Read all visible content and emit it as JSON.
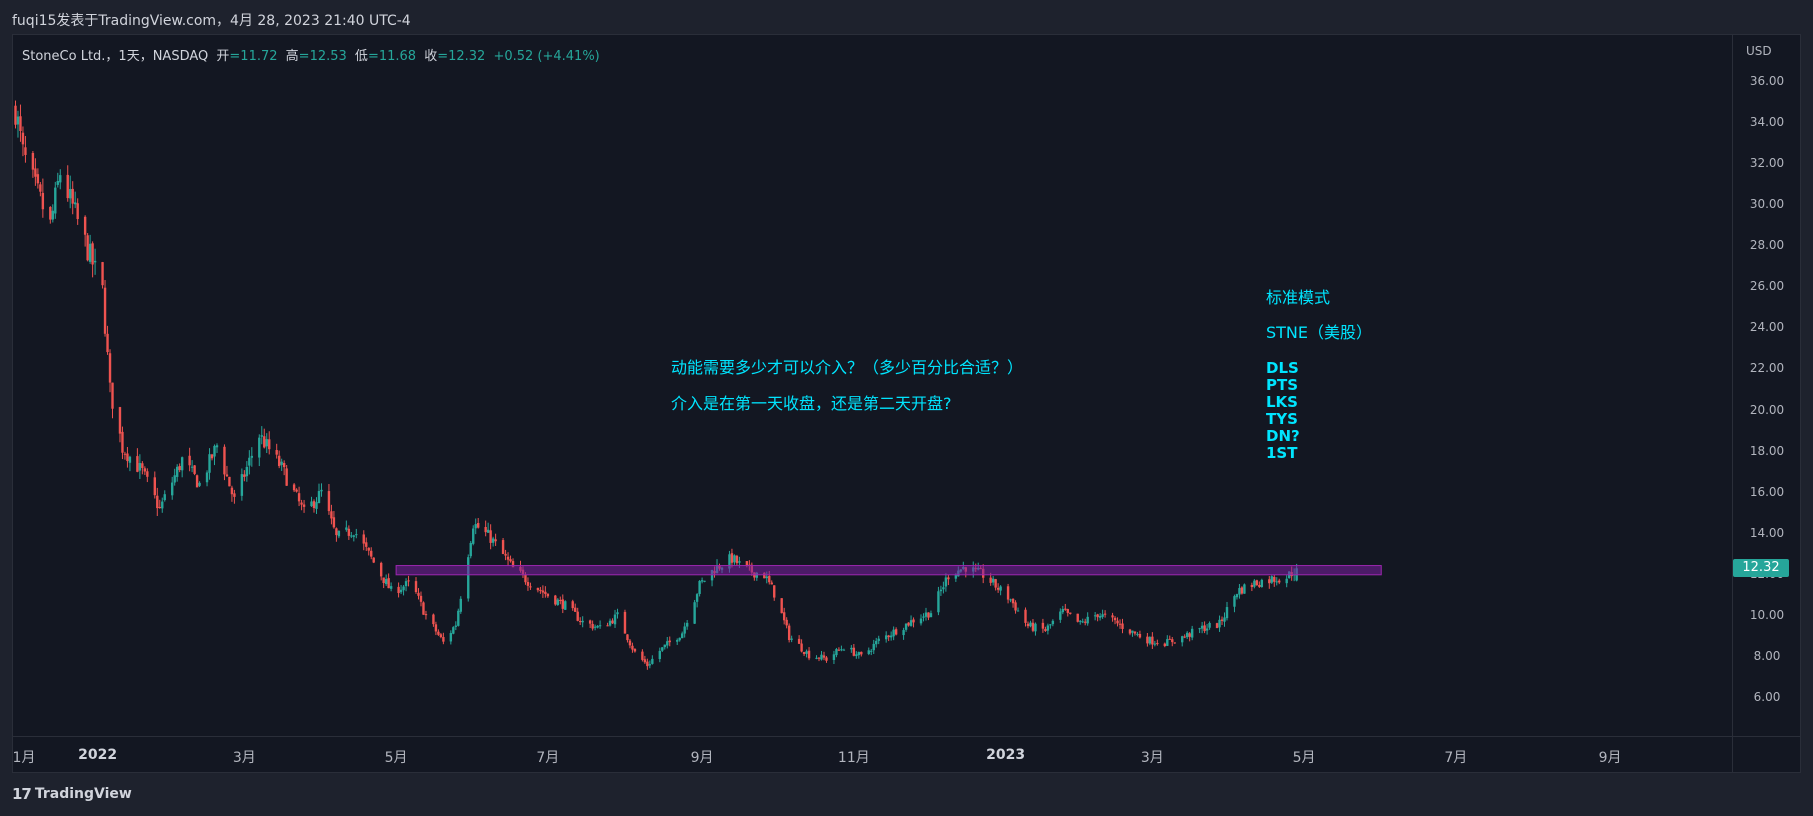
{
  "header": {
    "title": "fuqi15发表于TradingView.com，4月 28, 2023 21:40 UTC-4"
  },
  "legend": {
    "symbol": "StoneCo Ltd.，1天，NASDAQ",
    "open_label": "开",
    "open": "=11.72",
    "high_label": "高",
    "high": "=12.53",
    "low_label": "低",
    "low": "=11.68",
    "close_label": "收",
    "close": "=12.32",
    "change": "+0.52 (+4.41%)"
  },
  "price_axis": {
    "currency": "USD",
    "labels": [
      "36.00",
      "34.00",
      "32.00",
      "30.00",
      "28.00",
      "26.00",
      "24.00",
      "22.00",
      "20.00",
      "18.00",
      "16.00",
      "14.00",
      "12.00",
      "10.00",
      "8.00",
      "6.00"
    ],
    "current_price": "12.32"
  },
  "time_axis": {
    "labels": [
      "1月",
      "2022",
      "3月",
      "5月",
      "7月",
      "9月",
      "11月",
      "2023",
      "3月",
      "5月",
      "7月",
      "9月"
    ]
  },
  "annotations": {
    "question_1": "动能需要多少才可以介入？（多少百分比合适？）",
    "question_2": "介入是在第一天收盘，还是第二天开盘?",
    "mode_title": "标准模式",
    "ticker_note": "STNE（美股）",
    "checklist": [
      "DLS",
      "PTS",
      "LKS",
      "TYS",
      "DN?",
      "1ST"
    ]
  },
  "footer": {
    "brand": "TradingView"
  },
  "colors": {
    "up": "#26a69a",
    "down": "#ef5350",
    "annotation": "#00e5ff",
    "zone_fill": "#7b1fa2",
    "zone_border": "#9c27b0",
    "background": "#131722"
  },
  "chart_data": {
    "type": "candlestick",
    "title": "StoneCo Ltd., 1D, NASDAQ",
    "y_unit": "USD",
    "ylim": [
      5.0,
      37.0
    ],
    "x_range": [
      "2021-11-28",
      "2023-10-20"
    ],
    "resistance_zone": {
      "low": 12.0,
      "high": 12.45,
      "from": "2022-05-01",
      "to": "2023-06-01"
    },
    "price_path": [
      {
        "date": "2021-11-29",
        "close": 34.7
      },
      {
        "date": "2021-12-02",
        "close": 32.5
      },
      {
        "date": "2021-12-07",
        "close": 30.8
      },
      {
        "date": "2021-12-13",
        "close": 29.0
      },
      {
        "date": "2021-12-17",
        "close": 31.6
      },
      {
        "date": "2022-01-03",
        "close": 25.8
      },
      {
        "date": "2022-01-06",
        "close": 21.0
      },
      {
        "date": "2022-01-11",
        "close": 18.2
      },
      {
        "date": "2022-01-19",
        "close": 17.0
      },
      {
        "date": "2022-01-26",
        "close": 15.2
      },
      {
        "date": "2022-02-04",
        "close": 17.6
      },
      {
        "date": "2022-02-11",
        "close": 16.4
      },
      {
        "date": "2022-02-18",
        "close": 18.3
      },
      {
        "date": "2022-02-25",
        "close": 15.6
      },
      {
        "date": "2022-03-07",
        "close": 18.8
      },
      {
        "date": "2022-03-16",
        "close": 17.2
      },
      {
        "date": "2022-03-25",
        "close": 15.0
      },
      {
        "date": "2022-04-01",
        "close": 16.0
      },
      {
        "date": "2022-04-07",
        "close": 13.8
      },
      {
        "date": "2022-04-14",
        "close": 14.2
      },
      {
        "date": "2022-04-21",
        "close": 12.8
      },
      {
        "date": "2022-04-29",
        "close": 11.2
      },
      {
        "date": "2022-05-07",
        "close": 11.6
      },
      {
        "date": "2022-05-13",
        "close": 10.0
      },
      {
        "date": "2022-05-20",
        "close": 8.7
      },
      {
        "date": "2022-05-25",
        "close": 9.6
      },
      {
        "date": "2022-06-01",
        "close": 14.5
      },
      {
        "date": "2022-06-08",
        "close": 13.8
      },
      {
        "date": "2022-06-17",
        "close": 12.3
      },
      {
        "date": "2022-06-24",
        "close": 11.6
      },
      {
        "date": "2022-07-01",
        "close": 11.0
      },
      {
        "date": "2022-07-08",
        "close": 10.5
      },
      {
        "date": "2022-07-15",
        "close": 9.7
      },
      {
        "date": "2022-07-22",
        "close": 9.4
      },
      {
        "date": "2022-07-29",
        "close": 10.0
      },
      {
        "date": "2022-08-05",
        "close": 8.2
      },
      {
        "date": "2022-08-10",
        "close": 7.6
      },
      {
        "date": "2022-08-15",
        "close": 8.3
      },
      {
        "date": "2022-08-24",
        "close": 9.2
      },
      {
        "date": "2022-08-31",
        "close": 11.5
      },
      {
        "date": "2022-09-06",
        "close": 12.3
      },
      {
        "date": "2022-09-13",
        "close": 12.8
      },
      {
        "date": "2022-09-16",
        "close": 12.5
      },
      {
        "date": "2022-09-20",
        "close": 12.2
      },
      {
        "date": "2022-09-26",
        "close": 12.0
      },
      {
        "date": "2022-09-30",
        "close": 11.1
      },
      {
        "date": "2022-10-06",
        "close": 9.0
      },
      {
        "date": "2022-10-14",
        "close": 8.1
      },
      {
        "date": "2022-10-21",
        "close": 7.9
      },
      {
        "date": "2022-10-28",
        "close": 8.5
      },
      {
        "date": "2022-11-04",
        "close": 8.0
      },
      {
        "date": "2022-11-11",
        "close": 8.8
      },
      {
        "date": "2022-11-18",
        "close": 9.3
      },
      {
        "date": "2022-11-25",
        "close": 9.8
      },
      {
        "date": "2022-12-02",
        "close": 10.2
      },
      {
        "date": "2022-12-09",
        "close": 12.0
      },
      {
        "date": "2022-12-16",
        "close": 12.4
      },
      {
        "date": "2022-12-20",
        "close": 12.1
      },
      {
        "date": "2022-12-23",
        "close": 12.0
      },
      {
        "date": "2023-01-03",
        "close": 10.8
      },
      {
        "date": "2023-01-10",
        "close": 9.5
      },
      {
        "date": "2023-01-17",
        "close": 9.3
      },
      {
        "date": "2023-01-24",
        "close": 10.2
      },
      {
        "date": "2023-01-31",
        "close": 9.6
      },
      {
        "date": "2023-02-07",
        "close": 10.1
      },
      {
        "date": "2023-02-14",
        "close": 9.7
      },
      {
        "date": "2023-02-21",
        "close": 9.2
      },
      {
        "date": "2023-02-28",
        "close": 8.8
      },
      {
        "date": "2023-03-07",
        "close": 8.7
      },
      {
        "date": "2023-03-14",
        "close": 9.0
      },
      {
        "date": "2023-03-21",
        "close": 9.4
      },
      {
        "date": "2023-03-28",
        "close": 9.6
      },
      {
        "date": "2023-04-04",
        "close": 11.2
      },
      {
        "date": "2023-04-11",
        "close": 11.6
      },
      {
        "date": "2023-04-18",
        "close": 11.8
      },
      {
        "date": "2023-04-24",
        "close": 11.9
      },
      {
        "date": "2023-04-28",
        "close": 12.32
      }
    ]
  }
}
